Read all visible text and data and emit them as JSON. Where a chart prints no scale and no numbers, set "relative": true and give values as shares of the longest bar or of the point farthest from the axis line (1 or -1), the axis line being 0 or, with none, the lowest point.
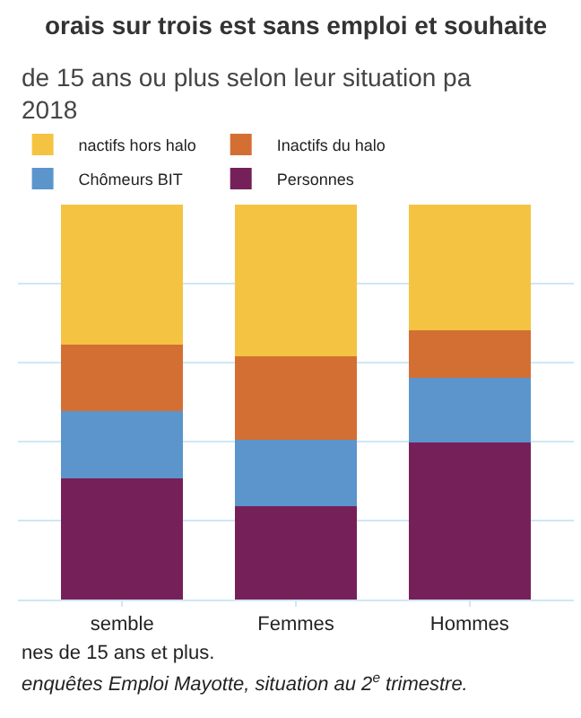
{
  "chart_data": {
    "type": "bar",
    "stacked": true,
    "relative": true,
    "title": "orais sur trois est sans emploi et souhaite",
    "subtitle": "de 15 ans ou plus selon leur situation pa\n2018",
    "categories": [
      "semble",
      "Femmes",
      "Hommes"
    ],
    "series": [
      {
        "name": "Personnes",
        "color": "#76205a",
        "values": [
          0.306,
          0.236,
          0.397
        ]
      },
      {
        "name": "Chômeurs BIT",
        "color": "#5b95cc",
        "values": [
          0.171,
          0.168,
          0.164
        ]
      },
      {
        "name": "Inactifs du halo",
        "color": "#d46f33",
        "values": [
          0.168,
          0.212,
          0.12
        ]
      },
      {
        "name": "nactifs hors halo",
        "color": "#f5c342",
        "values": [
          0.355,
          0.384,
          0.319
        ]
      }
    ],
    "annotations": [
      "nes de 15 ans et plus.",
      "enquêtes Emploi Mayotte, situation au 2$^{e}$ trimestre."
    ],
    "grid": "y",
    "legend": "top"
  }
}
